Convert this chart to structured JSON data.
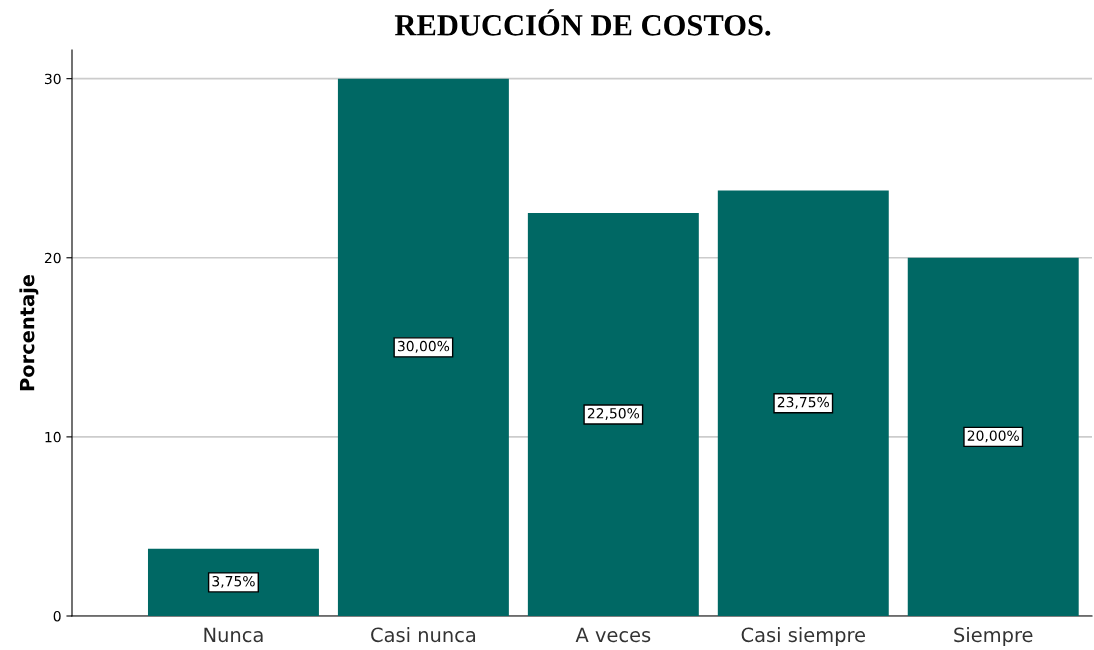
{
  "chart_data": {
    "type": "bar",
    "title": "REDUCCIÓN DE COSTOS.",
    "ylabel": "Porcentaje",
    "categories": [
      "Nunca",
      "Casi nunca",
      "A veces",
      "Casi siempre",
      "Siempre"
    ],
    "values": [
      3.75,
      30,
      22.5,
      23.75,
      20
    ],
    "value_labels": [
      "3,75%",
      "30,00%",
      "22,50%",
      "23,75%",
      "20,00%"
    ],
    "color": "#006864",
    "ylim": [
      0,
      31.6
    ],
    "yticks": [
      0,
      10,
      20,
      30
    ],
    "grid": "y"
  }
}
